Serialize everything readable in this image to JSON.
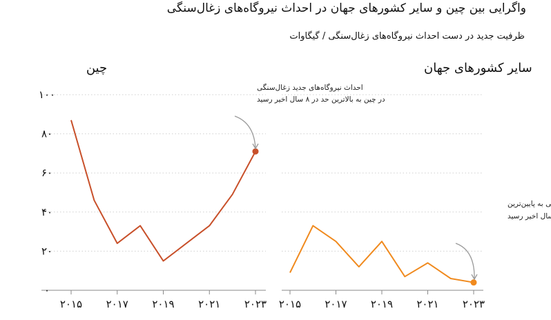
{
  "title": "واگرایی بین چین و سایر کشورهای جهان در احداث نیروگاه‌های زغال‌سنگی",
  "subtitle": "ظرفیت جدید در دست احداث نیروگاه‌های زغال‌سنگی / گیگاوات",
  "chart_data": [
    {
      "type": "line",
      "title": "چین",
      "x": [
        2015,
        2016,
        2017,
        2018,
        2019,
        2020,
        2021,
        2022,
        2023
      ],
      "series": [
        {
          "values": [
            87,
            46,
            24,
            33,
            15,
            24,
            33,
            49,
            71
          ],
          "color": "#c8502a"
        }
      ],
      "ylim": [
        0,
        100
      ],
      "yticks": [
        "۰",
        "۲۰",
        "۴۰",
        "۶۰",
        "۸۰",
        "۱۰۰"
      ],
      "xticks": [
        "۲۰۱۵",
        "۲۰۱۷",
        "۲۰۱۹",
        "۲۰۲۱",
        "۲۰۲۳"
      ],
      "annotation": [
        "احداث نیروگاه‌های جدید زغال‌سنگی",
        "در چین به بالاترین حد در ۸ سال اخیر رسید"
      ],
      "grid": "horizontal dotted"
    },
    {
      "type": "line",
      "title": "سایر کشورهای جهان",
      "x": [
        2015,
        2016,
        2017,
        2018,
        2019,
        2020,
        2021,
        2022,
        2023
      ],
      "series": [
        {
          "values": [
            9,
            33,
            25,
            12,
            25,
            7,
            14,
            6,
            4
          ],
          "color": "#f08a1e"
        }
      ],
      "ylim": [
        0,
        100
      ],
      "xticks": [
        "۲۰۱۵",
        "۲۰۱۷",
        "۲۰۱۹",
        "۲۰۲۱",
        "۲۰۲۳"
      ],
      "annotation": [
        "احداث نیروگاه‌های جدید زغال‌سنگی به پایین‌ترین",
        "حد خود در چندسال اخیر رسید"
      ],
      "grid": "horizontal dotted"
    }
  ]
}
